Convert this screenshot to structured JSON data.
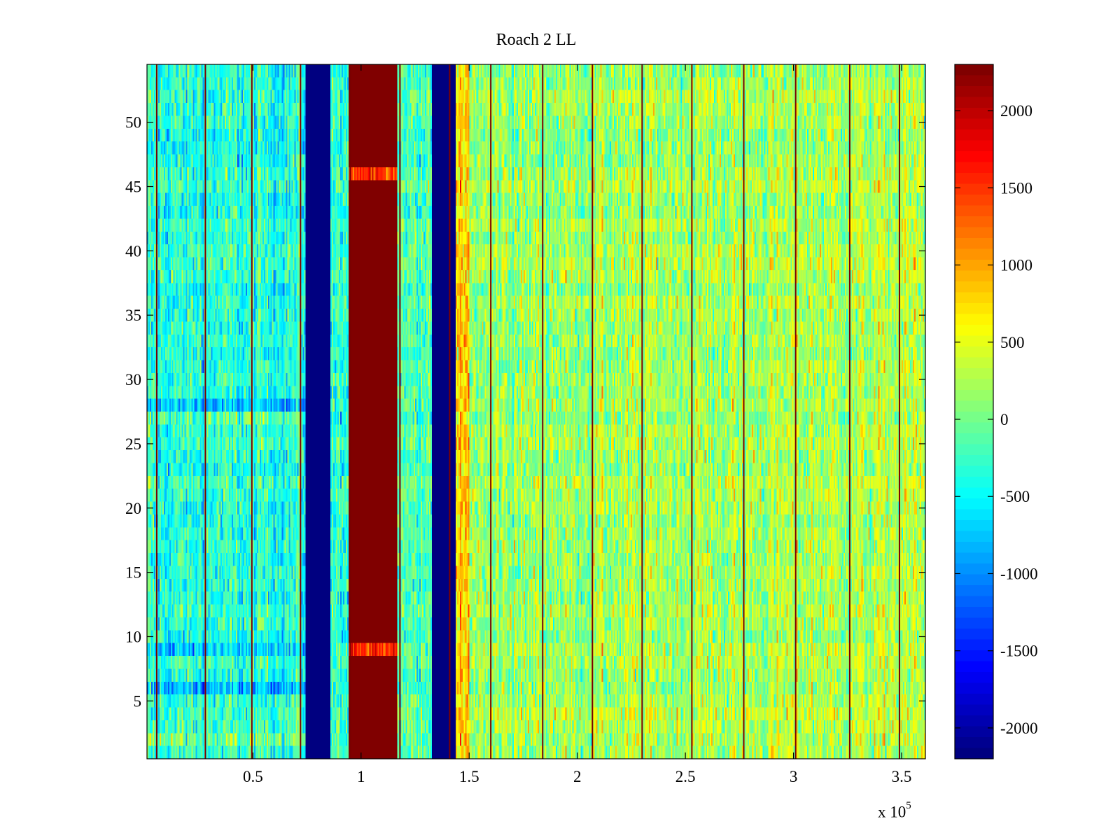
{
  "chart_data": {
    "type": "heatmap",
    "title": "Roach 2 LL",
    "xlabel": "",
    "ylabel": "",
    "x_range": [
      1000,
      361000
    ],
    "y_range": [
      0.5,
      54.5
    ],
    "x_exponent_label": {
      "base": "x 10",
      "power": "5"
    },
    "x_ticks": [
      0.5,
      1,
      1.5,
      2,
      2.5,
      3,
      3.5
    ],
    "x_tick_labels": [
      "0.5",
      "1",
      "1.5",
      "2",
      "2.5",
      "3",
      "3.5"
    ],
    "y_ticks": [
      5,
      10,
      15,
      20,
      25,
      30,
      35,
      40,
      45,
      50
    ],
    "y_tick_labels": [
      "5",
      "10",
      "15",
      "20",
      "25",
      "30",
      "35",
      "40",
      "45",
      "50"
    ],
    "rows": 54,
    "colormap": "jet",
    "clim": [
      -2200,
      2300
    ],
    "colorbar": {
      "ticks": [
        -2000,
        -1500,
        -1000,
        -500,
        0,
        500,
        1000,
        1500,
        2000
      ],
      "tick_labels": [
        "-2000",
        "-1500",
        "-1000",
        "-500",
        "0",
        "500",
        "1000",
        "1500",
        "2000"
      ],
      "placement": "right"
    },
    "bands": [
      {
        "x_start": 74000,
        "x_end": 86000,
        "value": -2200
      },
      {
        "x_start": 94000,
        "x_end": 117000,
        "value": 2300
      },
      {
        "x_start": 133000,
        "x_end": 144000,
        "value": -2200
      }
    ],
    "hot_lines_x": [
      5500,
      28000,
      49500,
      72000,
      95000,
      118000,
      141000,
      160000,
      184000,
      207000,
      230000,
      253000,
      277000,
      301000,
      326000,
      349000
    ],
    "background_mean": {
      "left_of_100000": -350,
      "right_of_150000": 150
    }
  }
}
